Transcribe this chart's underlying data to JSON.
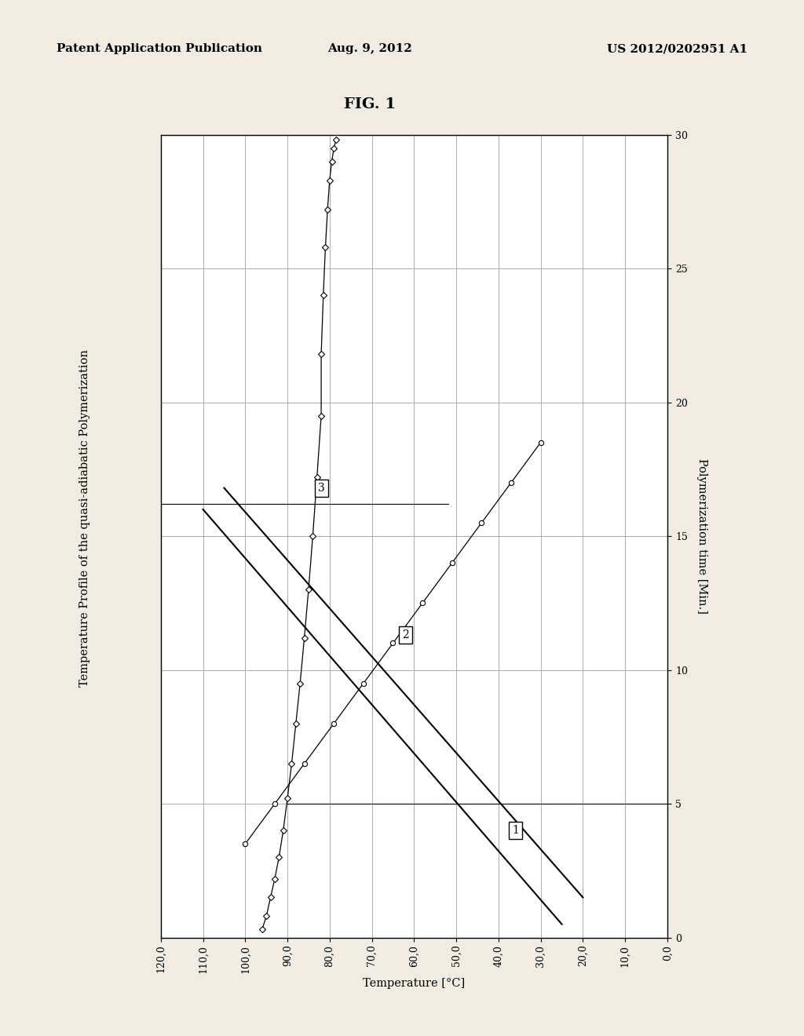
{
  "fig_title": "FIG. 1",
  "header_left": "Patent Application Publication",
  "header_center": "Aug. 9, 2012",
  "header_right": "US 2012/0202951 A1",
  "chart_title": "Temperature Profile of the quasi-adiabatic Polymerization",
  "xlabel": "Temperature [°C]",
  "ylabel": "Polymerization time [Min.]",
  "bg_color": "#f0ece4",
  "plot_bg": "#ffffff",
  "line_color": "#000000",
  "grid_color": "#aaaaaa",
  "xticks": [
    0,
    10,
    20,
    30,
    40,
    50,
    60,
    70,
    80,
    90,
    100,
    110,
    120
  ],
  "yticks": [
    0,
    5,
    10,
    15,
    20,
    25,
    30
  ],
  "curve1_temp": [
    96,
    95,
    94,
    93,
    92,
    91,
    90,
    89,
    88,
    87,
    86,
    85,
    84,
    83,
    82,
    82,
    81.5,
    81,
    80.5,
    80,
    79.5,
    79,
    78.5
  ],
  "curve1_time": [
    0.3,
    0.8,
    1.5,
    2.2,
    3.0,
    4.0,
    5.2,
    6.5,
    8.0,
    9.5,
    11.2,
    13.0,
    15.0,
    17.2,
    19.5,
    21.8,
    24.0,
    25.8,
    27.2,
    28.3,
    29.0,
    29.5,
    29.8
  ],
  "curve2_temp": [
    100,
    93,
    86,
    79,
    72,
    65,
    58,
    51,
    44,
    37,
    30
  ],
  "curve2_time": [
    3.5,
    5.0,
    6.5,
    8.0,
    9.5,
    11.0,
    12.5,
    14.0,
    15.5,
    17.0,
    18.5
  ],
  "line_a_temp": [
    110,
    25
  ],
  "line_a_time": [
    16.0,
    0.5
  ],
  "line_b_temp": [
    105,
    20
  ],
  "line_b_time": [
    16.8,
    1.5
  ],
  "hline1_time": 5.0,
  "hline1_xstart": 30,
  "hline2_time": 16.2,
  "hline2_xstart": 68,
  "label1_temp": 36,
  "label1_time": 4.0,
  "label2_temp": 62,
  "label2_time": 11.3,
  "label3_temp": 82,
  "label3_time": 16.8
}
